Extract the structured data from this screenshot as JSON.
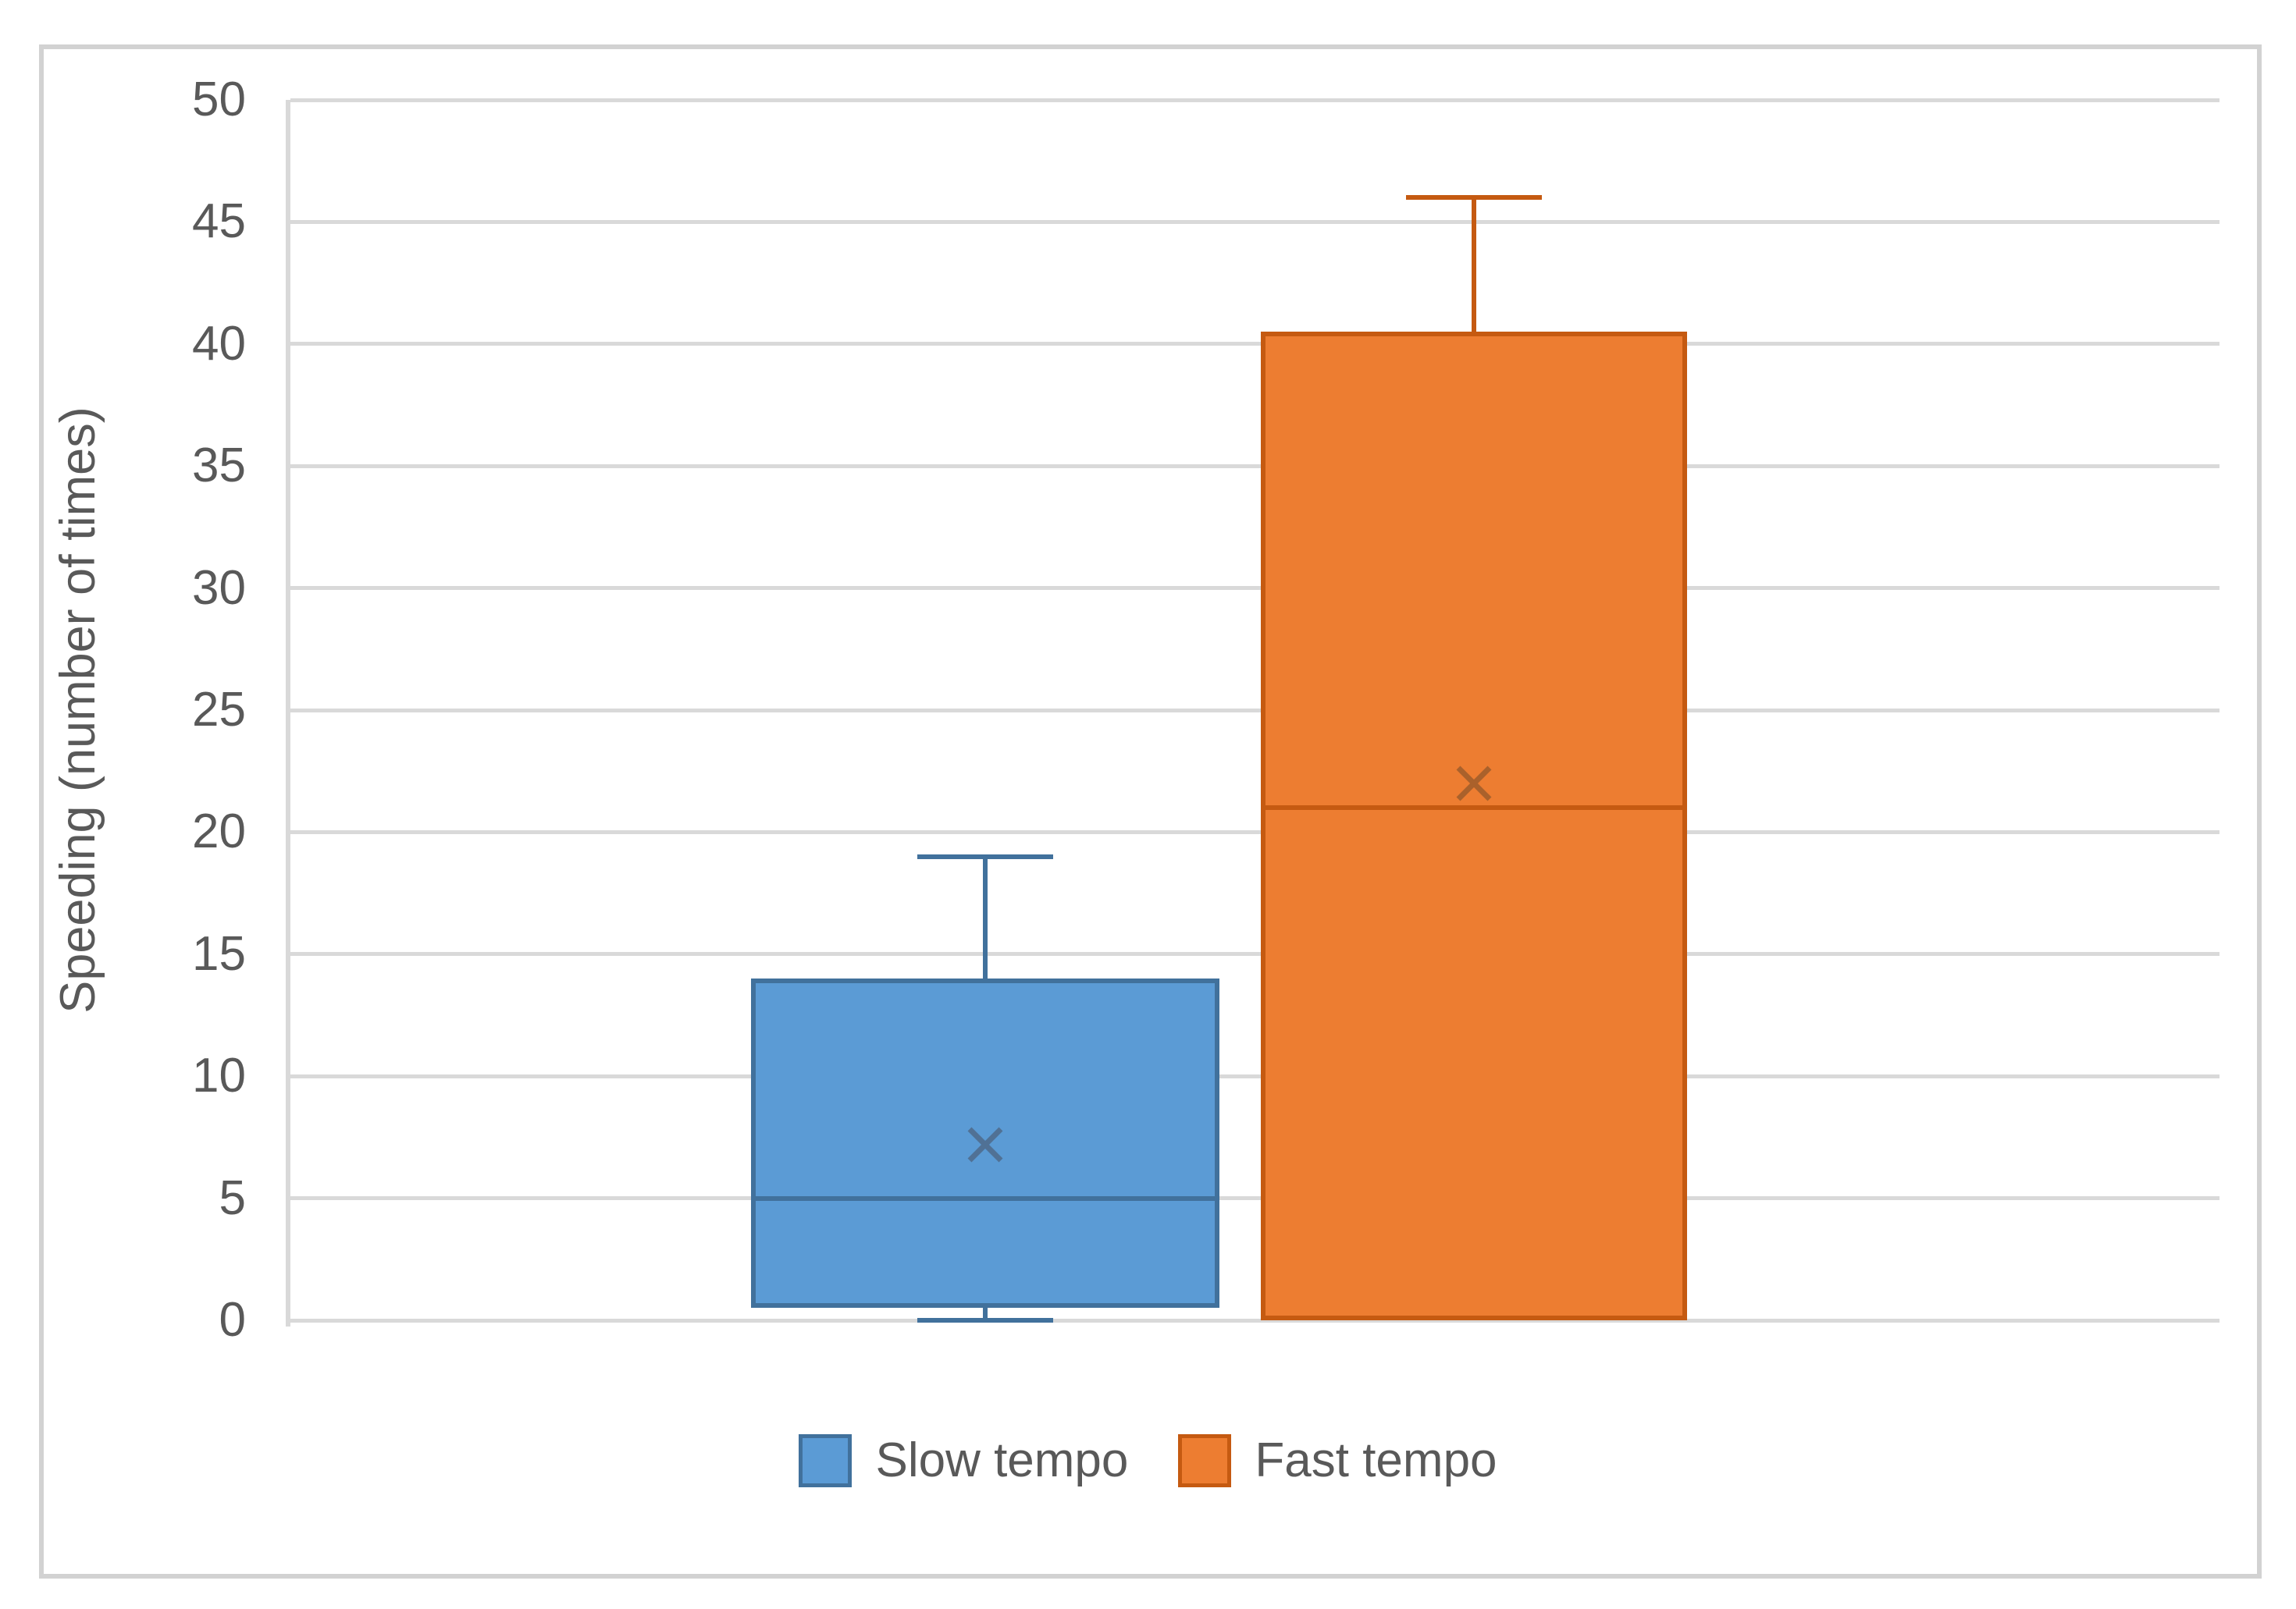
{
  "chart_data": {
    "type": "boxplot",
    "title": "",
    "ylabel": "Speeding (number of times)",
    "xlabel": "",
    "ylim": [
      0,
      50
    ],
    "yticks": [
      0,
      5,
      10,
      15,
      20,
      25,
      30,
      35,
      40,
      45,
      50
    ],
    "grid": "horizontal-major",
    "legend_position": "bottom-center",
    "series": [
      {
        "name": "Slow tempo",
        "min": 0,
        "q1": 0.5,
        "median": 5,
        "mean": 7.2,
        "q3": 14,
        "max": 19,
        "fill": "#5B9BD5",
        "border": "#41719C",
        "mean_marker": "#4F6D8F"
      },
      {
        "name": "Fast tempo",
        "min": 0,
        "q1": 0,
        "median": 21,
        "mean": 22,
        "q3": 40.5,
        "max": 46,
        "fill": "#ED7D31",
        "border": "#C55A11",
        "mean_marker": "#A35F2B"
      }
    ],
    "colors": {
      "gridline": "#D9D9D9",
      "axis_text": "#595959",
      "frame_border": "#D2D2D2",
      "background": "#FFFFFF"
    }
  }
}
